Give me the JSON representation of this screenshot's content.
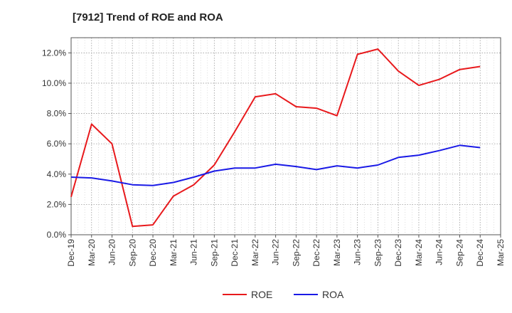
{
  "chart_data": {
    "type": "line",
    "title": "[7912]  Trend of ROE and ROA",
    "xlabel": "",
    "ylabel": "",
    "x_ticks": [
      "Dec-19",
      "Mar-20",
      "Jun-20",
      "Sep-20",
      "Dec-20",
      "Mar-21",
      "Jun-21",
      "Sep-21",
      "Dec-21",
      "Mar-22",
      "Jun-22",
      "Sep-22",
      "Dec-22",
      "Mar-23",
      "Jun-23",
      "Sep-23",
      "Dec-23",
      "Mar-24",
      "Jun-24",
      "Sep-24",
      "Dec-24",
      "Mar-25"
    ],
    "y_ticks": [
      "0.0%",
      "2.0%",
      "4.0%",
      "6.0%",
      "8.0%",
      "10.0%",
      "12.0%"
    ],
    "ylim": [
      0,
      13
    ],
    "grid": true,
    "legend_position": "bottom",
    "series": [
      {
        "name": "ROE",
        "color": "#e8191c",
        "values": [
          2.5,
          7.3,
          6.0,
          0.55,
          0.65,
          2.55,
          3.3,
          4.6,
          6.8,
          9.1,
          9.3,
          8.45,
          8.35,
          7.85,
          11.9,
          12.25,
          10.8,
          9.85,
          10.25,
          10.9,
          11.1
        ]
      },
      {
        "name": "ROA",
        "color": "#1a1ae6",
        "values": [
          3.8,
          3.75,
          3.55,
          3.3,
          3.25,
          3.45,
          3.8,
          4.2,
          4.4,
          4.4,
          4.65,
          4.5,
          4.3,
          4.55,
          4.4,
          4.6,
          5.1,
          5.25,
          5.55,
          5.9,
          5.75
        ]
      }
    ]
  }
}
